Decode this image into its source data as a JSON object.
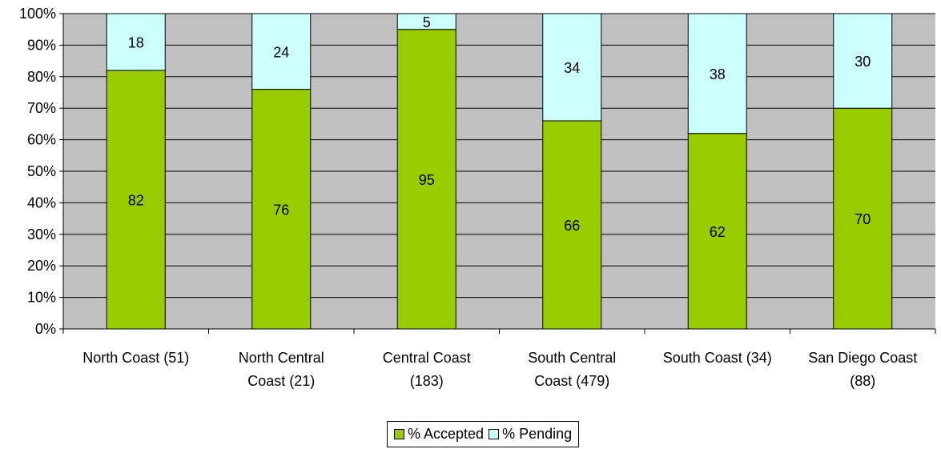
{
  "chart_data": {
    "type": "bar",
    "stacked": true,
    "percent_stacked": true,
    "categories": [
      [
        "North Coast (51)"
      ],
      [
        "North Central",
        "Coast (21)"
      ],
      [
        "Central Coast",
        "(183)"
      ],
      [
        "South Central",
        "Coast (479)"
      ],
      [
        "South Coast (34)"
      ],
      [
        "San Diego Coast",
        "(88)"
      ]
    ],
    "series": [
      {
        "name": "% Accepted",
        "color": "#99cc00",
        "values": [
          82,
          76,
          95,
          66,
          62,
          70
        ]
      },
      {
        "name": "% Pending",
        "color": "#ccffff",
        "values": [
          18,
          24,
          5,
          34,
          38,
          30
        ]
      }
    ],
    "y_ticks": [
      "0%",
      "10%",
      "20%",
      "30%",
      "40%",
      "50%",
      "60%",
      "70%",
      "80%",
      "90%",
      "100%"
    ],
    "ylim": [
      0,
      100
    ],
    "grid": true,
    "plot_background": "#c0c0c0",
    "legend_position": "bottom"
  }
}
